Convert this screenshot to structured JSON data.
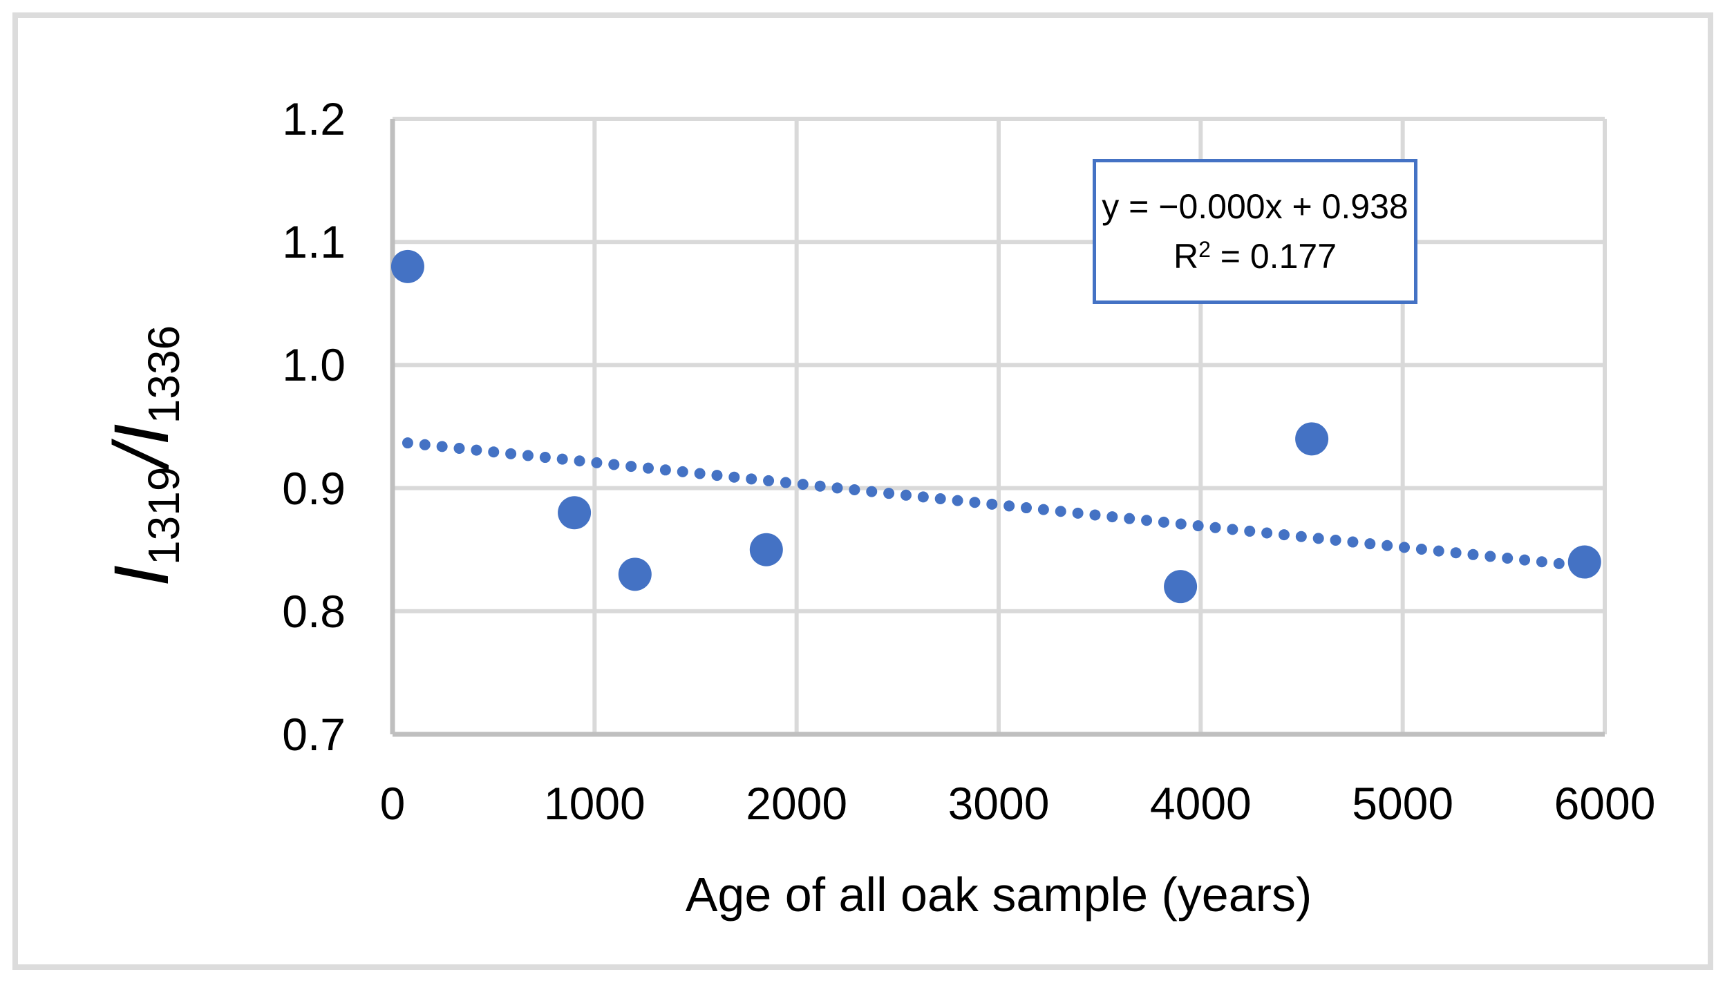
{
  "chart_data": {
    "type": "scatter",
    "title": "",
    "xlabel": "Age of all oak sample (years)",
    "ylabel": {
      "symbol_a": "I",
      "sub_a": "1319",
      "slash": "/",
      "symbol_b": "I",
      "sub_b": "1336"
    },
    "x": [
      75,
      900,
      1200,
      1850,
      3900,
      4550,
      5900
    ],
    "y": [
      1.08,
      0.88,
      0.83,
      0.85,
      0.82,
      0.94,
      0.84
    ],
    "xlim": [
      0,
      6000
    ],
    "ylim": [
      0.7,
      1.2
    ],
    "x_ticks": [
      0,
      1000,
      2000,
      3000,
      4000,
      5000,
      6000
    ],
    "y_ticks": [
      "1.2",
      "1.1",
      "1.0",
      "0.9",
      "0.8",
      "0.7"
    ],
    "grid": true,
    "legend": "none",
    "trendline": {
      "style": "dotted",
      "slope": -1.72e-05,
      "intercept": 0.938,
      "x_start": 75,
      "x_end": 5900
    },
    "annotation": {
      "equation": "y = −0.000x + 0.938",
      "r_squared": {
        "base": "R",
        "sup": "2",
        "rest": " = 0.177"
      }
    },
    "colors": {
      "marker": "#4472C4",
      "trendline": "#4472C4",
      "gridline": "#D9D9D9",
      "axis_line": "#BFBFBF",
      "equation_border": "#4472C4",
      "frame_border": "#DCDCDC",
      "text": "#000000"
    }
  }
}
